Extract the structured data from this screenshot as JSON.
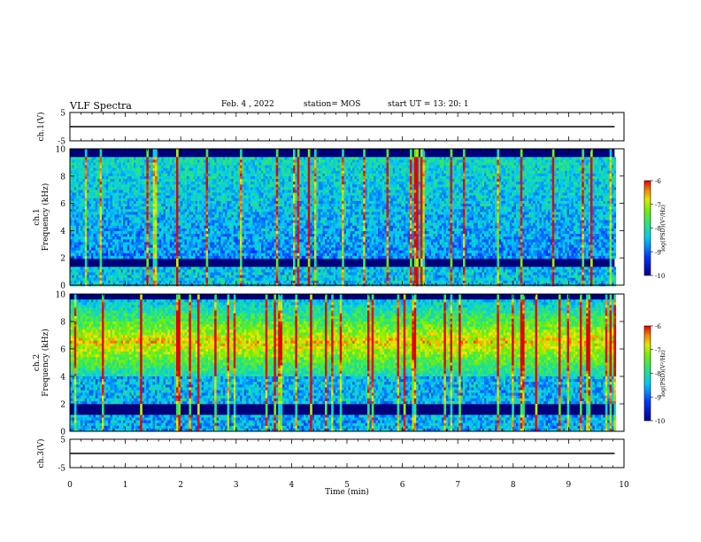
{
  "header": {
    "title": "VLF Spectra",
    "date": "Feb. 4 , 2022",
    "station": "station= MOS",
    "start_ut": "start UT =  13: 20: 1"
  },
  "chart_data": [
    {
      "type": "line",
      "panel": "ch1-waveform",
      "ylabel": "ch.1(V)",
      "ylim": [
        -5,
        5
      ],
      "yticks": [
        "5",
        "-5"
      ],
      "xlim": [
        0,
        10
      ],
      "series": [
        {
          "x": [
            0,
            9.83
          ],
          "y": [
            0,
            0
          ]
        }
      ]
    },
    {
      "type": "heatmap",
      "panel": "ch1-spectrogram",
      "ylabel": "ch.1\nFrequency (kHz)",
      "ylim": [
        0,
        10
      ],
      "yticks": [
        "0",
        "2",
        "4",
        "6",
        "8",
        "10"
      ],
      "xlim": [
        0,
        10
      ],
      "data_end_min": 9.83,
      "colorbar": {
        "label": "log(PSD)(V²/Hz)",
        "range": [
          -10,
          -6
        ],
        "ticks": [
          "-6",
          "-7",
          "-8",
          "-9",
          "-10"
        ]
      }
    },
    {
      "type": "heatmap",
      "panel": "ch2-spectrogram",
      "ylabel": "ch.2\nFrequency (kHz)",
      "ylim": [
        0,
        10
      ],
      "yticks": [
        "0",
        "2",
        "4",
        "6",
        "8",
        "10"
      ],
      "xlim": [
        0,
        10
      ],
      "data_end_min": 9.83,
      "colorbar": {
        "label": "log(PSD)(V²/Hz)",
        "range": [
          -10,
          -6
        ],
        "ticks": [
          "-6",
          "-7",
          "-8",
          "-9",
          "-10"
        ]
      }
    },
    {
      "type": "line",
      "panel": "ch3-waveform",
      "ylabel": "ch.3(V)",
      "ylim": [
        -5,
        5
      ],
      "yticks": [
        "5",
        "-5"
      ],
      "xlim": [
        0,
        10
      ],
      "xlabel": "Time (min)",
      "xticks": [
        "0",
        "1",
        "2",
        "3",
        "4",
        "5",
        "6",
        "7",
        "8",
        "9",
        "10"
      ],
      "series": [
        {
          "x": [
            0,
            9.83
          ],
          "y": [
            0,
            0
          ]
        }
      ]
    }
  ]
}
